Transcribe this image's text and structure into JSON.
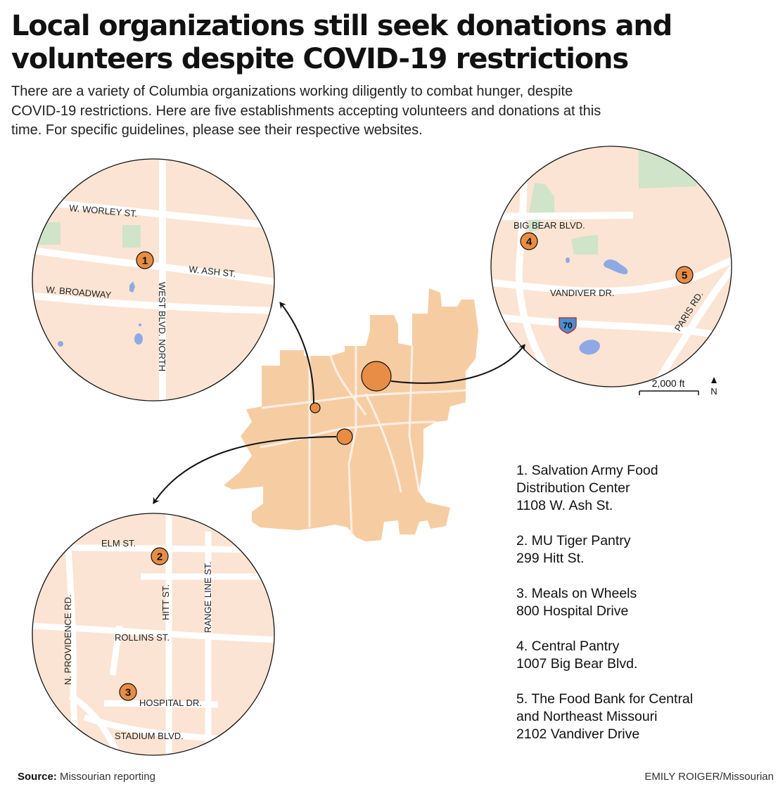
{
  "headline": {
    "line1": "Local organizations still seek donations and",
    "line2": "volunteers despite COVID-19 restrictions"
  },
  "intro": {
    "line1": "There are a variety of Columbia organizations working diligently to combat hunger, despite",
    "line2": "COVID-19 restrictions. Here are five establishments accepting volunteers and donations at this",
    "line3": "time. For specific guidelines, please see their respective websites."
  },
  "inset_downtown": {
    "streets": [
      "W. WORLEY ST.",
      "W. ASH ST.",
      "W. BROADWAY",
      "WEST BLVD. NORTH"
    ],
    "marker": "1"
  },
  "inset_northeast": {
    "streets": [
      "BIG BEAR BLVD.",
      "VANDIVER DR.",
      "PARIS RD."
    ],
    "highway_shield": "70",
    "markers": [
      "4",
      "5"
    ]
  },
  "inset_campus": {
    "streets": [
      "ELM ST.",
      "HITT ST.",
      "RANGE LINE ST.",
      "N. PROVIDENCE RD.",
      "ROLLINS ST.",
      "HOSPITAL DR.",
      "STADIUM BLVD."
    ],
    "markers": [
      "2",
      "3"
    ]
  },
  "scale_bar": {
    "label": "2,000 ft",
    "north": "N"
  },
  "locations": [
    {
      "line1": "1. Salvation Army Food",
      "line2": "Distribution Center",
      "line3": "1108 W. Ash St."
    },
    {
      "line1": "2. MU Tiger Pantry",
      "line2": "299 Hitt St."
    },
    {
      "line1": "3. Meals on Wheels",
      "line2": "800 Hospital Drive"
    },
    {
      "line1": "4. Central Pantry",
      "line2": "1007 Big Bear Blvd."
    },
    {
      "line1": "5. The Food Bank for Central",
      "line2": "and Northeast Missouri",
      "line3": "2102 Vandiver Drive"
    }
  ],
  "source": {
    "label": "Source:",
    "text": "Missourian reporting"
  },
  "credit": {
    "author": "EMILY ROIGER",
    "outlet": "/Missourian"
  },
  "colors": {
    "land": "#fbe4d3",
    "city": "#f6cda3",
    "park": "#cfe4c9",
    "water": "#8fa9e4",
    "marker": "#e88d45"
  }
}
